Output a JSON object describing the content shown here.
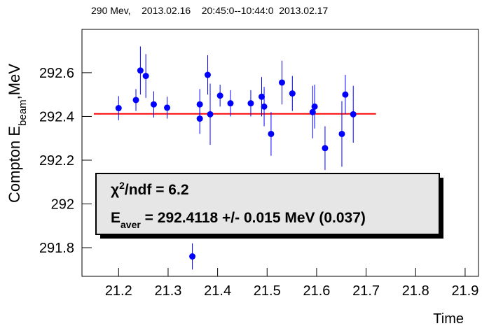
{
  "chart_data": {
    "type": "errorbar",
    "title": "290 Mev,    2013.02.16    20:45:0--10:44:0  2013.02.17",
    "x_label": "Time",
    "y_label_parts": [
      "Compton E",
      "beam",
      ",MeV"
    ],
    "x": [
      21.2,
      21.235,
      21.244,
      21.255,
      21.271,
      21.298,
      21.349,
      21.364,
      21.364,
      21.38,
      21.385,
      21.405,
      21.426,
      21.467,
      21.489,
      21.494,
      21.508,
      21.53,
      21.551,
      21.592,
      21.596,
      21.617,
      21.651,
      21.658,
      21.674
    ],
    "series": [
      {
        "color": "#0000ff",
        "values": [
          292.438,
          292.475,
          292.61,
          292.585,
          292.455,
          292.44,
          291.76,
          292.455,
          292.39,
          292.59,
          292.41,
          292.495,
          292.46,
          292.46,
          292.49,
          292.445,
          292.32,
          292.555,
          292.505,
          292.42,
          292.445,
          292.255,
          292.32,
          292.5,
          292.41
        ],
        "errors": [
          0.055,
          0.05,
          0.11,
          0.1,
          0.06,
          0.05,
          0.06,
          0.07,
          0.07,
          0.09,
          0.14,
          0.05,
          0.06,
          0.06,
          0.09,
          0.09,
          0.1,
          0.1,
          0.08,
          0.12,
          0.1,
          0.1,
          0.15,
          0.09,
          0.13
        ]
      }
    ],
    "fit": {
      "value": 292.4118,
      "xrange": [
        21.15,
        21.72
      ],
      "color": "#ff0000"
    },
    "stats": [
      [
        "χ",
        "2",
        "/ndf = 6.2"
      ],
      [
        "E",
        "aver",
        " = 292.4118 +/- 0.015 MeV (0.037)"
      ]
    ],
    "xlim": [
      21.126,
      21.927
    ],
    "ylim": [
      291.669,
      292.798
    ],
    "xticks": [
      21.2,
      21.3,
      21.4,
      21.5,
      21.6,
      21.7,
      21.8,
      21.9
    ],
    "yticks": [
      291.8,
      292,
      292.2,
      292.4,
      292.6
    ]
  }
}
